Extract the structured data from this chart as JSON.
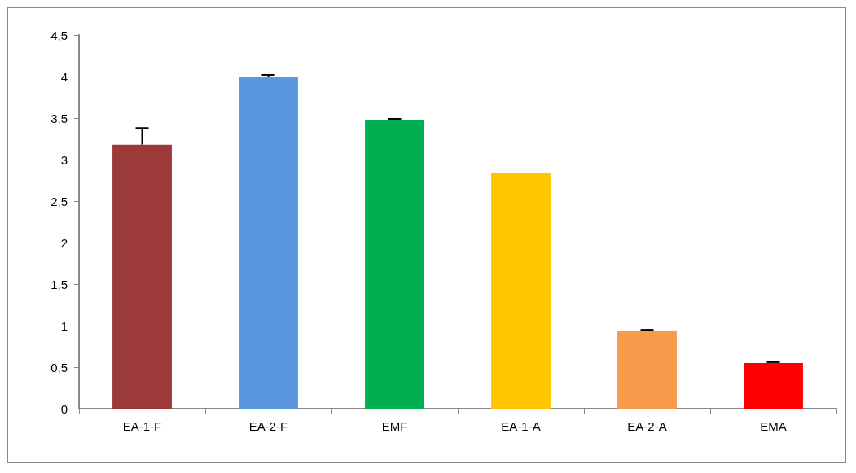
{
  "chart_data": {
    "type": "bar",
    "categories": [
      "EA-1-F",
      "EA-2-F",
      "EMF",
      "EA-1-A",
      "EA-2-A",
      "EMA"
    ],
    "values": [
      3.18,
      4.0,
      3.47,
      2.84,
      0.94,
      0.55
    ],
    "colors": [
      "#9b3a38",
      "#5b97de",
      "#00b050",
      "#ffc600",
      "#f79a4a",
      "#ff0000"
    ],
    "errors": [
      [
        3.18,
        3.38
      ],
      [
        4.0,
        4.02
      ],
      [
        3.47,
        3.49
      ],
      null,
      [
        0.94,
        0.95
      ],
      [
        0.55,
        0.56
      ]
    ],
    "ylim": [
      0,
      4.5
    ],
    "yticks": [
      0,
      {
        "value": 0.5,
        "label": "0,5"
      },
      1,
      {
        "value": 1.5,
        "label": "1,5"
      },
      2,
      {
        "value": 2.5,
        "label": "2,5"
      },
      3,
      {
        "value": 3.5,
        "label": "3,5"
      },
      4,
      {
        "value": 4.5,
        "label": "4,5"
      }
    ],
    "grid": false
  }
}
